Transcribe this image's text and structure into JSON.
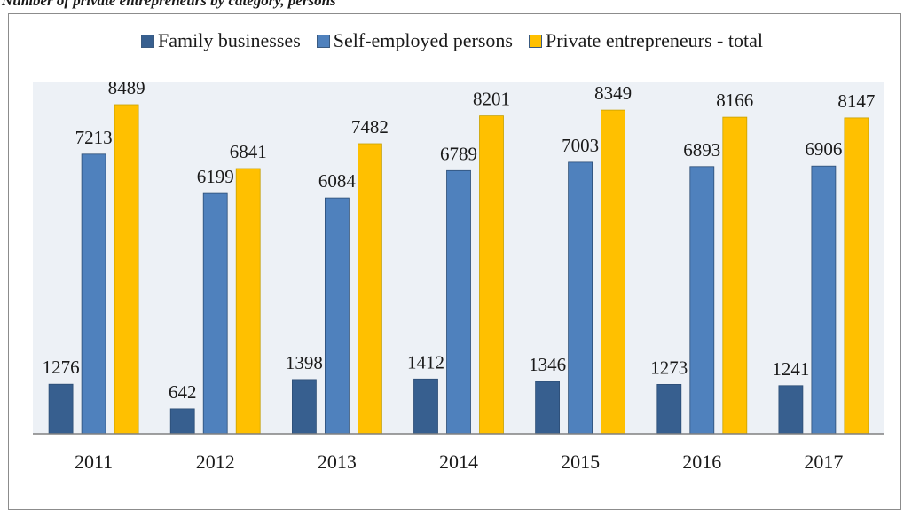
{
  "caption": "Number of private entrepreneurs by category, persons",
  "chart_data": {
    "type": "bar",
    "categories": [
      "2011",
      "2012",
      "2013",
      "2014",
      "2015",
      "2016",
      "2017"
    ],
    "series": [
      {
        "name": "Family businesses",
        "color": "#375f8f",
        "values": [
          1276,
          642,
          1398,
          1412,
          1346,
          1273,
          1241
        ]
      },
      {
        "name": "Self-employed persons",
        "color": "#4f81bd",
        "values": [
          7213,
          6199,
          6084,
          6789,
          7003,
          6893,
          6906
        ]
      },
      {
        "name": "Private entrepreneurs - total",
        "color": "#ffc000",
        "values": [
          8489,
          6841,
          7482,
          8201,
          8349,
          8166,
          8147
        ]
      }
    ],
    "ylim": [
      0,
      8800
    ],
    "legend_position": "top",
    "grid": false,
    "plot_background": "#edf1f6",
    "data_labels": true
  }
}
